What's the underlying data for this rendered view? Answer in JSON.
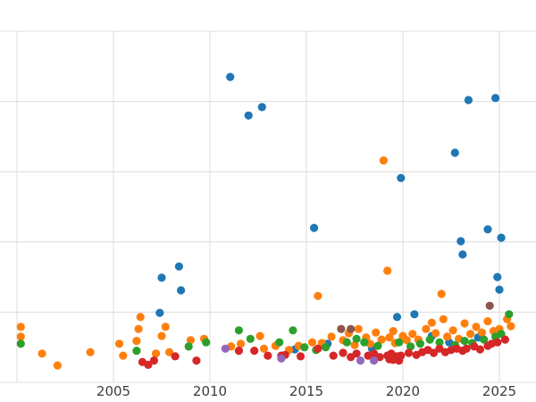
{
  "figure": {
    "background": "#ffffff",
    "grid_color": "#dcdcdc",
    "tick_label_color": "#3d3d3d"
  },
  "chart_data": {
    "type": "scatter",
    "title": "",
    "xlabel": "",
    "ylabel": "",
    "grid": true,
    "legend": "none",
    "x_tick_labels": [
      "2005",
      "2010",
      "2015",
      "2020",
      "2025"
    ],
    "x_tick_years": [
      2005,
      2010,
      2015,
      2020,
      2025
    ],
    "x_gridline_years": [
      2000,
      2005,
      2010,
      2015,
      2020,
      2025
    ],
    "y_gridline_values": [
      0,
      1,
      2,
      3,
      4,
      5
    ],
    "xlim": [
      1999.12,
      2026.9
    ],
    "ylim": [
      0,
      5
    ],
    "marker_radius_px": 4.6,
    "series": [
      {
        "name": "blue",
        "color": "#1f77b4",
        "points": [
          [
            2011.05,
            4.35
          ],
          [
            2012.0,
            3.8
          ],
          [
            2012.7,
            3.92
          ],
          [
            2023.4,
            4.02
          ],
          [
            2024.8,
            4.05
          ],
          [
            2022.7,
            3.27
          ],
          [
            2019.9,
            2.91
          ],
          [
            2015.4,
            2.2
          ],
          [
            2024.4,
            2.18
          ],
          [
            2025.1,
            2.06
          ],
          [
            2023.0,
            2.01
          ],
          [
            2023.1,
            1.82
          ],
          [
            2008.4,
            1.65
          ],
          [
            2007.5,
            1.49
          ],
          [
            2008.5,
            1.31
          ],
          [
            2024.9,
            1.5
          ],
          [
            2025.0,
            1.32
          ],
          [
            2007.4,
            0.99
          ],
          [
            2019.7,
            0.93
          ],
          [
            2020.6,
            0.97
          ],
          [
            2016.1,
            0.55
          ],
          [
            2014.4,
            0.47
          ],
          [
            2018.4,
            0.48
          ],
          [
            2021.5,
            0.66
          ],
          [
            2022.4,
            0.57
          ],
          [
            2023.9,
            0.64
          ]
        ]
      },
      {
        "name": "orange",
        "color": "#ff7f0e",
        "points": [
          [
            2000.2,
            0.79
          ],
          [
            2000.2,
            0.65
          ],
          [
            2001.3,
            0.41
          ],
          [
            2002.1,
            0.24
          ],
          [
            2003.8,
            0.43
          ],
          [
            2005.3,
            0.55
          ],
          [
            2005.5,
            0.38
          ],
          [
            2006.2,
            0.59
          ],
          [
            2006.3,
            0.76
          ],
          [
            2006.4,
            0.93
          ],
          [
            2007.2,
            0.41
          ],
          [
            2007.5,
            0.66
          ],
          [
            2007.7,
            0.79
          ],
          [
            2007.9,
            0.43
          ],
          [
            2009.0,
            0.6
          ],
          [
            2009.7,
            0.62
          ],
          [
            2011.1,
            0.51
          ],
          [
            2011.6,
            0.55
          ],
          [
            2012.6,
            0.66
          ],
          [
            2012.8,
            0.48
          ],
          [
            2013.4,
            0.52
          ],
          [
            2014.1,
            0.46
          ],
          [
            2014.6,
            0.52
          ],
          [
            2015.3,
            0.57
          ],
          [
            2015.6,
            1.23
          ],
          [
            2015.8,
            0.56
          ],
          [
            2016.3,
            0.65
          ],
          [
            2016.9,
            0.6
          ],
          [
            2017.2,
            0.7
          ],
          [
            2017.5,
            0.53
          ],
          [
            2017.7,
            0.76
          ],
          [
            2018.1,
            0.64
          ],
          [
            2018.3,
            0.55
          ],
          [
            2018.6,
            0.71
          ],
          [
            2018.9,
            0.61
          ],
          [
            2019.0,
            3.16
          ],
          [
            2019.2,
            1.59
          ],
          [
            2019.3,
            0.64
          ],
          [
            2019.5,
            0.73
          ],
          [
            2019.6,
            0.56
          ],
          [
            2020.0,
            0.66
          ],
          [
            2020.2,
            0.6
          ],
          [
            2020.5,
            0.69
          ],
          [
            2020.8,
            0.61
          ],
          [
            2021.2,
            0.76
          ],
          [
            2021.5,
            0.85
          ],
          [
            2021.7,
            0.7
          ],
          [
            2022.0,
            1.26
          ],
          [
            2022.1,
            0.9
          ],
          [
            2022.3,
            0.65
          ],
          [
            2022.6,
            0.74
          ],
          [
            2022.9,
            0.62
          ],
          [
            2023.2,
            0.84
          ],
          [
            2023.5,
            0.69
          ],
          [
            2023.8,
            0.79
          ],
          [
            2024.1,
            0.71
          ],
          [
            2024.4,
            0.87
          ],
          [
            2024.7,
            0.73
          ],
          [
            2025.0,
            0.76
          ],
          [
            2025.4,
            0.9
          ],
          [
            2025.6,
            0.8
          ]
        ]
      },
      {
        "name": "green",
        "color": "#2ca02c",
        "points": [
          [
            2000.2,
            0.55
          ],
          [
            2006.2,
            0.45
          ],
          [
            2008.9,
            0.51
          ],
          [
            2009.8,
            0.57
          ],
          [
            2011.5,
            0.74
          ],
          [
            2012.1,
            0.62
          ],
          [
            2013.6,
            0.57
          ],
          [
            2014.3,
            0.74
          ],
          [
            2014.9,
            0.5
          ],
          [
            2015.5,
            0.46
          ],
          [
            2016.0,
            0.5
          ],
          [
            2017.1,
            0.57
          ],
          [
            2017.6,
            0.62
          ],
          [
            2018.0,
            0.57
          ],
          [
            2018.7,
            0.52
          ],
          [
            2019.8,
            0.57
          ],
          [
            2020.4,
            0.51
          ],
          [
            2020.9,
            0.55
          ],
          [
            2021.4,
            0.61
          ],
          [
            2021.9,
            0.57
          ],
          [
            2022.7,
            0.53
          ],
          [
            2023.2,
            0.59
          ],
          [
            2023.6,
            0.56
          ],
          [
            2024.2,
            0.61
          ],
          [
            2024.8,
            0.65
          ],
          [
            2025.1,
            0.69
          ],
          [
            2025.5,
            0.97
          ]
        ]
      },
      {
        "name": "red",
        "color": "#d62728",
        "points": [
          [
            2006.5,
            0.29
          ],
          [
            2006.8,
            0.25
          ],
          [
            2007.1,
            0.31
          ],
          [
            2008.2,
            0.37
          ],
          [
            2009.3,
            0.31
          ],
          [
            2011.5,
            0.45
          ],
          [
            2012.3,
            0.45
          ],
          [
            2013.0,
            0.38
          ],
          [
            2013.7,
            0.38
          ],
          [
            2013.9,
            0.39
          ],
          [
            2014.7,
            0.37
          ],
          [
            2015.6,
            0.48
          ],
          [
            2016.4,
            0.38
          ],
          [
            2016.9,
            0.42
          ],
          [
            2017.3,
            0.36
          ],
          [
            2017.6,
            0.41
          ],
          [
            2018.2,
            0.38
          ],
          [
            2018.5,
            0.41
          ],
          [
            2018.8,
            0.36
          ],
          [
            2019.2,
            0.38
          ],
          [
            2019.3,
            0.33
          ],
          [
            2019.4,
            0.41
          ],
          [
            2019.5,
            0.32
          ],
          [
            2019.7,
            0.37
          ],
          [
            2019.8,
            0.31
          ],
          [
            2019.9,
            0.38
          ],
          [
            2020.3,
            0.42
          ],
          [
            2020.7,
            0.39
          ],
          [
            2021.0,
            0.43
          ],
          [
            2021.3,
            0.46
          ],
          [
            2021.6,
            0.42
          ],
          [
            2021.9,
            0.48
          ],
          [
            2022.2,
            0.43
          ],
          [
            2022.5,
            0.46
          ],
          [
            2022.8,
            0.48
          ],
          [
            2023.1,
            0.45
          ],
          [
            2023.3,
            0.48
          ],
          [
            2023.7,
            0.51
          ],
          [
            2024.0,
            0.47
          ],
          [
            2024.4,
            0.52
          ],
          [
            2024.6,
            0.55
          ],
          [
            2024.9,
            0.57
          ],
          [
            2025.3,
            0.61
          ]
        ]
      },
      {
        "name": "purple",
        "color": "#9467bd",
        "points": [
          [
            2010.8,
            0.48
          ],
          [
            2013.7,
            0.34
          ],
          [
            2017.8,
            0.31
          ],
          [
            2018.5,
            0.31
          ]
        ]
      },
      {
        "name": "brown",
        "color": "#8c564b",
        "points": [
          [
            2016.8,
            0.76
          ],
          [
            2017.3,
            0.76
          ],
          [
            2024.5,
            1.09
          ]
        ]
      }
    ]
  }
}
